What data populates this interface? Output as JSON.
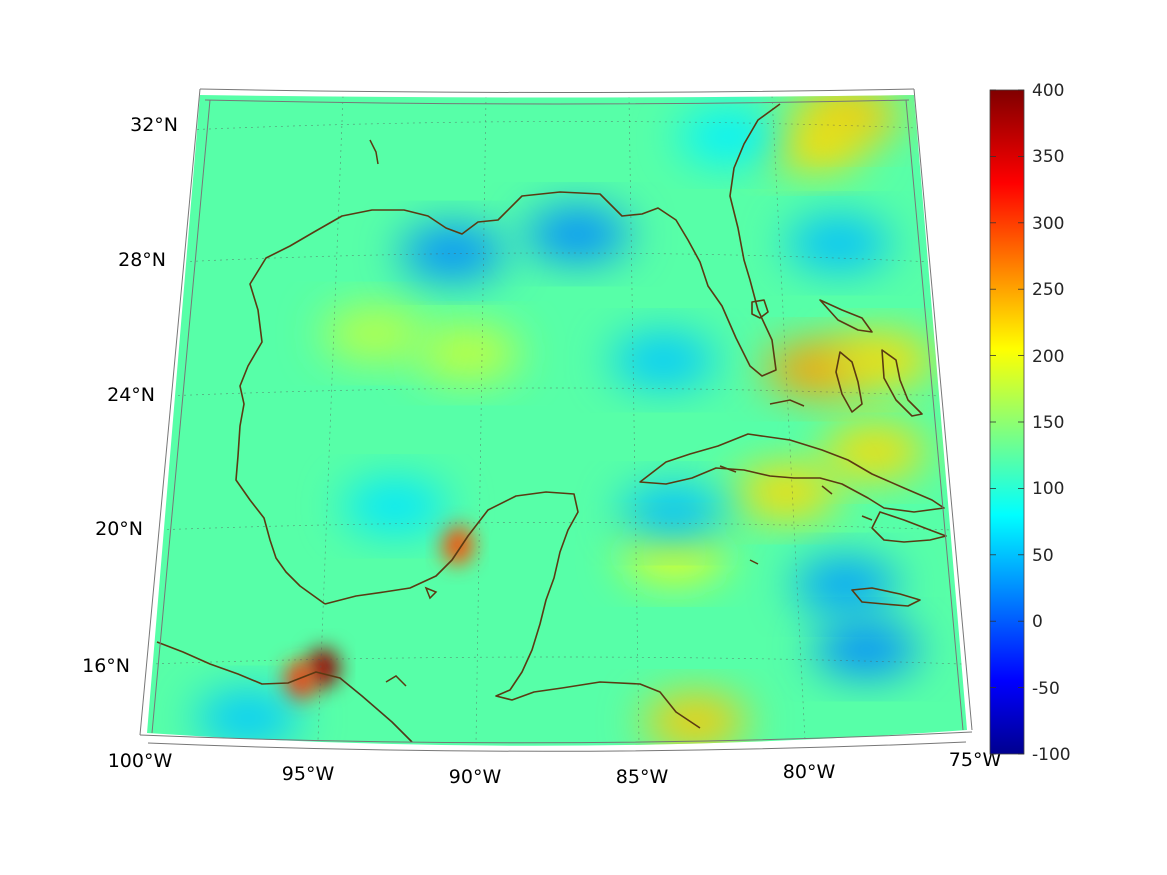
{
  "map": {
    "longitude_labels": [
      "100°W",
      "95°W",
      "90°W",
      "85°W",
      "80°W",
      "75°W"
    ],
    "latitude_labels": [
      "16°N",
      "20°N",
      "24°N",
      "28°N",
      "32°N"
    ],
    "extent": {
      "lon": [
        -100,
        -75
      ],
      "lat": [
        14,
        33
      ]
    },
    "grid": true
  },
  "colorbar": {
    "colormap": "jet",
    "range": [
      -100,
      400
    ],
    "tick_labels": [
      "400",
      "350",
      "300",
      "250",
      "200",
      "150",
      "100",
      "50",
      "0",
      "-50",
      "-100"
    ],
    "colors": [
      "#00008f",
      "#0000ff",
      "#0080ff",
      "#00ffff",
      "#80ff80",
      "#ffff00",
      "#ff8000",
      "#ff0000",
      "#800000"
    ]
  },
  "chart_data": {
    "type": "heatmap",
    "title": "",
    "xlabel": "",
    "ylabel": "",
    "x_tick_labels": [
      "100°W",
      "95°W",
      "90°W",
      "85°W",
      "80°W",
      "75°W"
    ],
    "y_tick_labels": [
      "16°N",
      "20°N",
      "24°N",
      "28°N",
      "32°N"
    ],
    "xlim": [
      -100,
      -75
    ],
    "ylim": [
      14,
      33
    ],
    "colorbar_range": [
      -100,
      400
    ],
    "colorbar_ticks": [
      -100,
      -50,
      0,
      50,
      100,
      150,
      200,
      250,
      300,
      350,
      400
    ],
    "background_value": 130,
    "features": [
      {
        "name": "",
        "lon": -94.6,
        "lat": 16.1,
        "value": 390
      },
      {
        "name": "",
        "lon": -95.3,
        "lat": 15.7,
        "value": 310
      },
      {
        "name": "",
        "lon": -90.6,
        "lat": 19.7,
        "value": 300
      },
      {
        "name": "",
        "lon": -77.3,
        "lat": 32.3,
        "value": 240
      },
      {
        "name": "",
        "lon": -78.6,
        "lat": 31.4,
        "value": 230
      },
      {
        "name": "",
        "lon": -79.0,
        "lat": 24.8,
        "value": 260
      },
      {
        "name": "",
        "lon": -76.8,
        "lat": 25.1,
        "value": 230
      },
      {
        "name": "",
        "lon": -77.3,
        "lat": 22.4,
        "value": 230
      },
      {
        "name": "",
        "lon": -80.2,
        "lat": 21.2,
        "value": 230
      },
      {
        "name": "",
        "lon": -83.8,
        "lat": 19.4,
        "value": 200
      },
      {
        "name": "",
        "lon": -83.3,
        "lat": 14.6,
        "value": 240
      },
      {
        "name": "",
        "lon": -90.4,
        "lat": 25.2,
        "value": 185
      },
      {
        "name": "",
        "lon": -93.5,
        "lat": 25.8,
        "value": 180
      },
      {
        "name": "",
        "lon": -91.0,
        "lat": 28.1,
        "value": 30
      },
      {
        "name": "",
        "lon": -86.8,
        "lat": 28.6,
        "value": 30
      },
      {
        "name": "",
        "lon": -78.0,
        "lat": 28.5,
        "value": 55
      },
      {
        "name": "",
        "lon": -84.0,
        "lat": 25.0,
        "value": 60
      },
      {
        "name": "",
        "lon": -83.8,
        "lat": 20.6,
        "value": 55
      },
      {
        "name": "",
        "lon": -78.5,
        "lat": 18.5,
        "value": 40
      },
      {
        "name": "",
        "lon": -78.0,
        "lat": 16.6,
        "value": 30
      },
      {
        "name": "",
        "lon": -96.8,
        "lat": 14.6,
        "value": 60
      },
      {
        "name": "",
        "lon": -92.6,
        "lat": 20.8,
        "value": 75
      },
      {
        "name": "",
        "lon": -81.5,
        "lat": 31.5,
        "value": 80
      }
    ]
  }
}
